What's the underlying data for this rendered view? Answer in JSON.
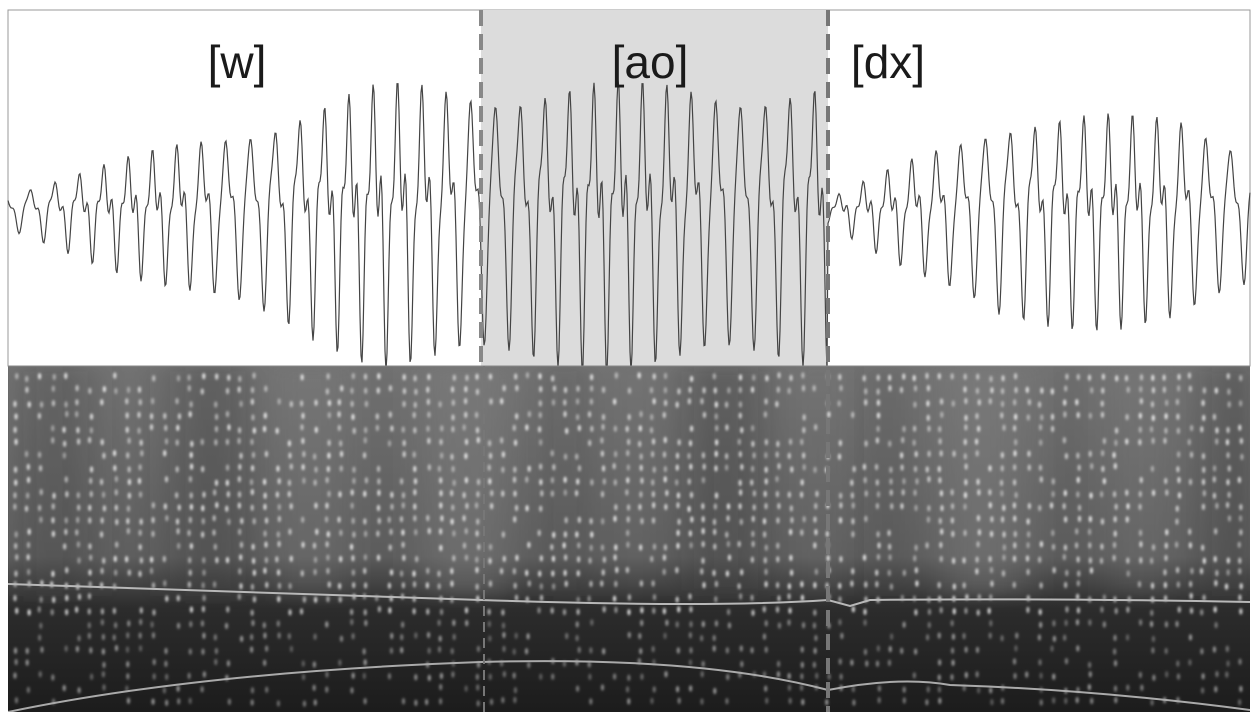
{
  "segments": [
    {
      "label": "[w]"
    },
    {
      "label": "[ao]"
    },
    {
      "label": "[dx]"
    }
  ]
}
